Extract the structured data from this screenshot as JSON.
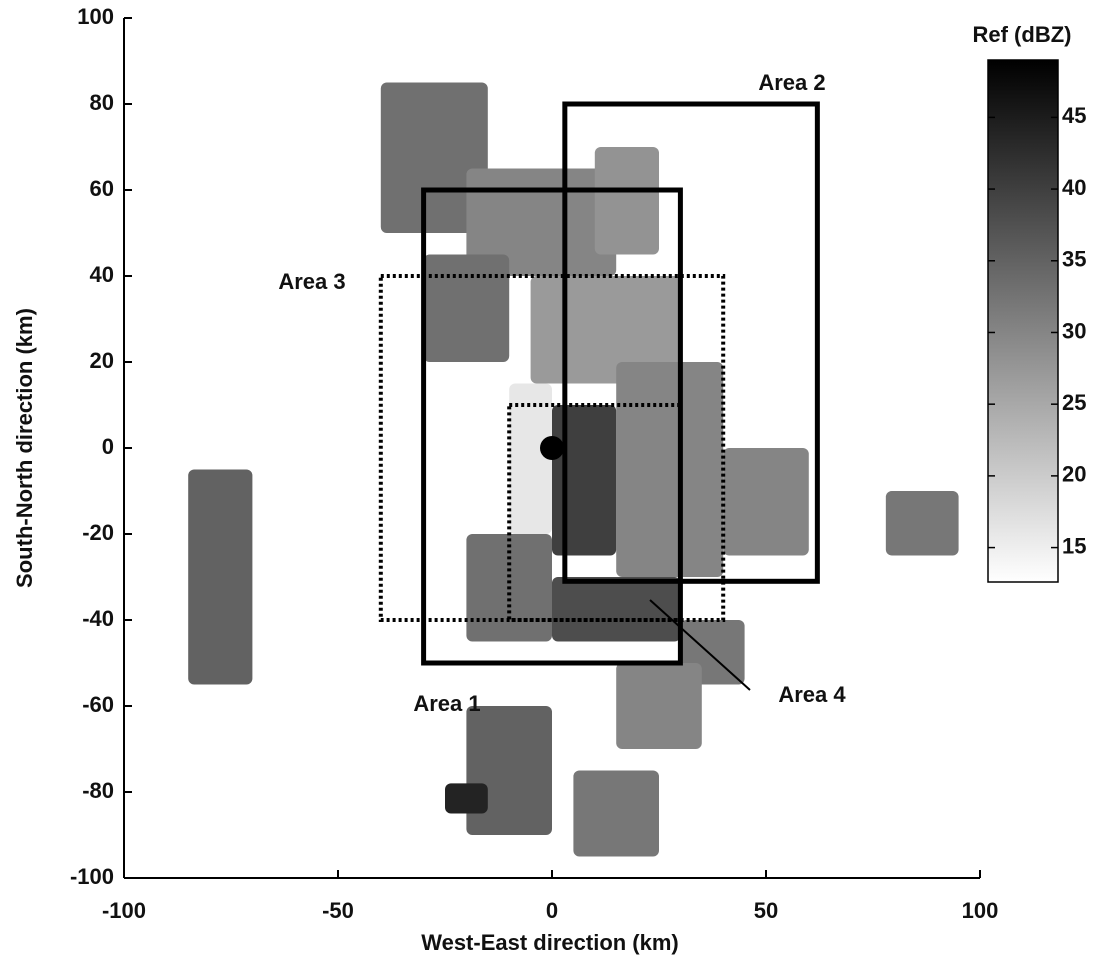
{
  "chart_data": {
    "type": "radar-map",
    "xlabel": "West-East direction (km)",
    "ylabel": "South-North direction (km)",
    "colorbar_label": "Ref (dBZ)",
    "xlim": [
      -100,
      100
    ],
    "ylim": [
      -100,
      100
    ],
    "xticks": [
      -100,
      -50,
      0,
      50,
      100
    ],
    "yticks": [
      -100,
      -80,
      -60,
      -40,
      -20,
      0,
      20,
      40,
      60,
      80,
      100
    ],
    "clim": [
      12.6,
      49
    ],
    "cticks": [
      15,
      20,
      25,
      30,
      35,
      40,
      45
    ],
    "radar_site": {
      "x": 0,
      "y": 0
    },
    "echo": [
      {
        "x": [
          -40,
          -15
        ],
        "y": [
          50,
          85
        ],
        "dbz": 33
      },
      {
        "x": [
          -20,
          15
        ],
        "y": [
          40,
          65
        ],
        "dbz": 30
      },
      {
        "x": [
          10,
          25
        ],
        "y": [
          45,
          70
        ],
        "dbz": 28
      },
      {
        "x": [
          -30,
          -10
        ],
        "y": [
          20,
          45
        ],
        "dbz": 33
      },
      {
        "x": [
          -5,
          30
        ],
        "y": [
          15,
          40
        ],
        "dbz": 27
      },
      {
        "x": [
          15,
          40
        ],
        "y": [
          -30,
          20
        ],
        "dbz": 30
      },
      {
        "x": [
          40,
          60
        ],
        "y": [
          -25,
          0
        ],
        "dbz": 30
      },
      {
        "x": [
          -20,
          0
        ],
        "y": [
          -45,
          -20
        ],
        "dbz": 33
      },
      {
        "x": [
          -10,
          0
        ],
        "y": [
          -20,
          15
        ],
        "dbz": 16
      },
      {
        "x": [
          0,
          15
        ],
        "y": [
          -25,
          10
        ],
        "dbz": 40
      },
      {
        "x": [
          0,
          30
        ],
        "y": [
          -45,
          -30
        ],
        "dbz": 38
      },
      {
        "x": [
          30,
          45
        ],
        "y": [
          -55,
          -40
        ],
        "dbz": 32
      },
      {
        "x": [
          15,
          35
        ],
        "y": [
          -70,
          -50
        ],
        "dbz": 30
      },
      {
        "x": [
          -20,
          0
        ],
        "y": [
          -90,
          -60
        ],
        "dbz": 35
      },
      {
        "x": [
          -25,
          -15
        ],
        "y": [
          -85,
          -78
        ],
        "dbz": 44
      },
      {
        "x": [
          5,
          25
        ],
        "y": [
          -95,
          -75
        ],
        "dbz": 32
      },
      {
        "x": [
          -85,
          -70
        ],
        "y": [
          -55,
          -5
        ],
        "dbz": 35
      },
      {
        "x": [
          78,
          95
        ],
        "y": [
          -25,
          -10
        ],
        "dbz": 32
      }
    ],
    "areas": [
      {
        "label": "Area 1",
        "x": [
          -30,
          30
        ],
        "y": [
          -50,
          60
        ],
        "style": "solid"
      },
      {
        "label": "Area 2",
        "x": [
          3,
          62
        ],
        "y": [
          -31,
          80
        ],
        "style": "solid"
      },
      {
        "label": "Area 3",
        "x": [
          -40,
          40
        ],
        "y": [
          -40,
          40
        ],
        "style": "dotted"
      },
      {
        "label": "Area 4",
        "x": [
          -10,
          30
        ],
        "y": [
          -40,
          10
        ],
        "style": "dotted"
      }
    ]
  }
}
